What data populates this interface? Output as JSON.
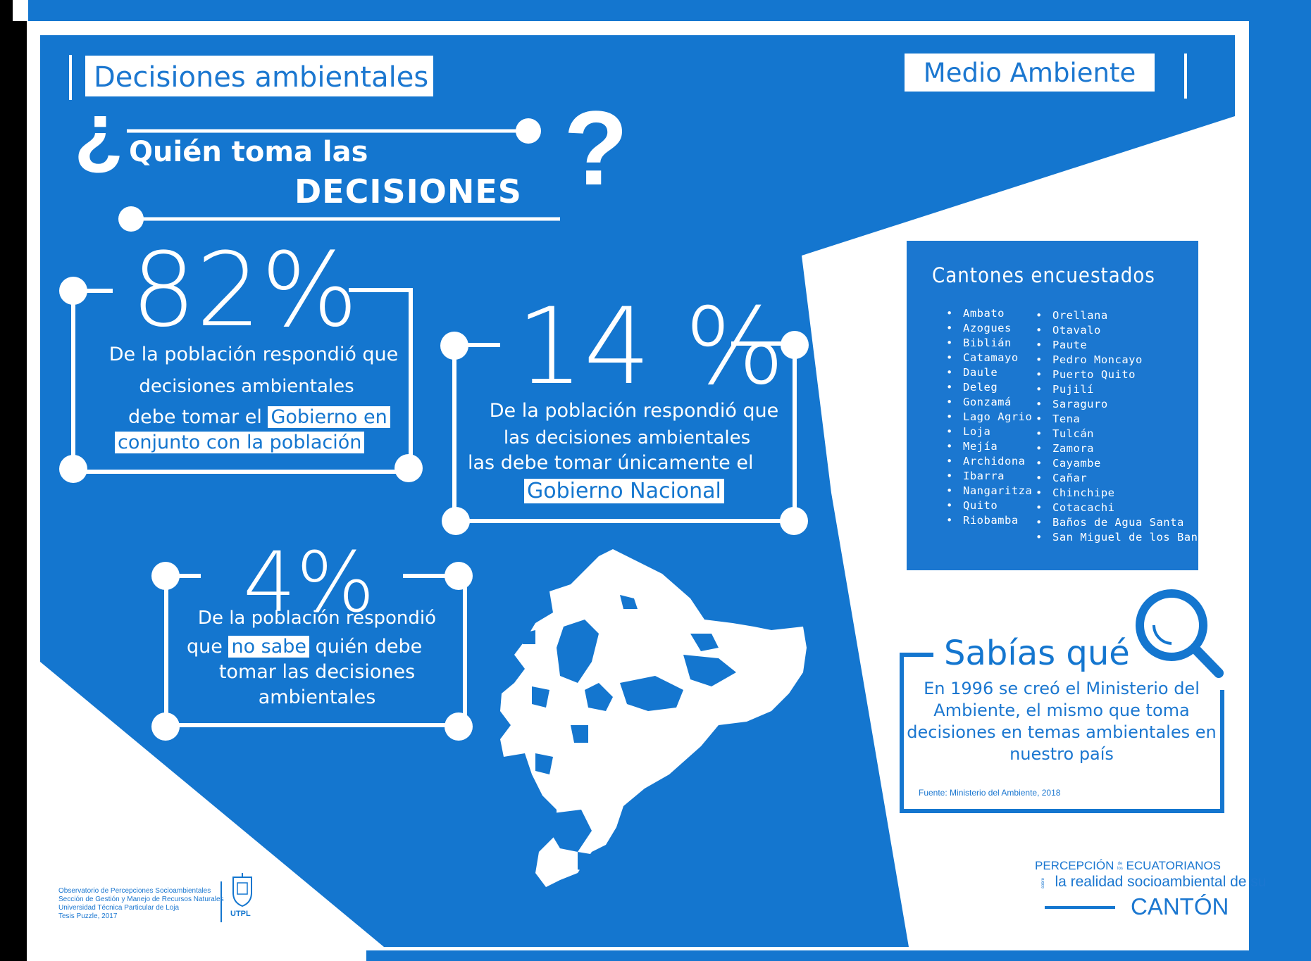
{
  "header": {
    "left_tag": "Decisiones ambientales",
    "right_tag": "Medio Ambiente"
  },
  "question": {
    "open_mark": "¿",
    "line1": "Quién toma las",
    "line2": "DECISIONES",
    "close_mark": "?"
  },
  "stat_82": {
    "value": "82%",
    "line1": "De la población respondió que",
    "line2": "decisiones ambientales",
    "line3": "debe tomar el",
    "highlight1": "Gobierno en",
    "highlight2": "conjunto con la población"
  },
  "stat_14": {
    "value": "14 %",
    "line1": "De la población respondió que",
    "line2": "las decisiones ambientales",
    "line3": "las debe tomar  únicamente el",
    "highlight": "Gobierno Nacional"
  },
  "stat_4": {
    "value": "4%",
    "line1": "De la población respondió",
    "line2_pre": "que",
    "highlight": "no sabe",
    "line2_post": "quién debe",
    "line3": "tomar las decisiones",
    "line4": "ambientales"
  },
  "cantones": {
    "title": "Cantones encuestados",
    "col1": [
      "Ambato",
      "Azogues",
      "Biblián",
      "Catamayo",
      "Daule",
      "Deleg",
      "Gonzamá",
      "Lago Agrio",
      "Loja",
      "Mejía",
      "Archidona",
      "Ibarra",
      "Nangaritza",
      "Quito",
      "Riobamba"
    ],
    "col2": [
      "Orellana",
      "Otavalo",
      "Paute",
      "Pedro Moncayo",
      "Puerto Quito",
      "Pujilí",
      "Saraguro",
      "Tena",
      "Tulcán",
      "Zamora",
      "Cayambe",
      "Cañar",
      "Chinchipe",
      "Cotacachi",
      "Baños de Agua Santa",
      "San Miguel de los Bancos"
    ]
  },
  "sabias": {
    "title": "Sabías qué",
    "line1": "En 1996 se creó el Ministerio del",
    "line2": "Ambiente, el mismo que toma",
    "line3": "decisiones en temas ambientales en",
    "line4": "nuestro país",
    "source": "Fuente: Ministerio del Ambiente, 2018"
  },
  "footer_left": {
    "line1": "Observatorio de Percepciones Socioambientales",
    "line2": "Sección de Gestión y Manejo de Recursos Naturales",
    "line3": "Universidad Técnica Particular de Loja",
    "line4": "Tesis Puzzle, 2017",
    "logo_text": "UTPL"
  },
  "footer_right": {
    "word1": "PERCEPCIÓN",
    "de_los_1": "de",
    "de_los_2": "los",
    "word2": "ECUATORIANOS",
    "sobre": "sobre",
    "line2": "la realidad socioambiental de su",
    "line3": "CANTÓN"
  },
  "colors": {
    "primary_blue": "#1476cf",
    "accent_blue": "#1b77d0",
    "white": "#ffffff"
  }
}
